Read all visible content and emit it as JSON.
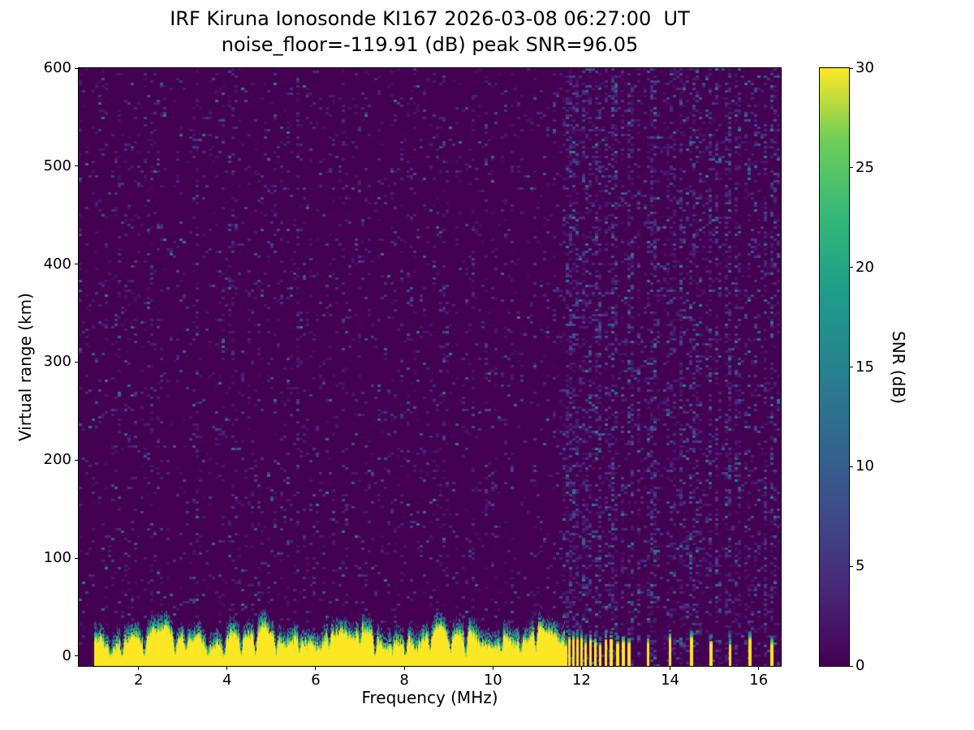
{
  "figure": {
    "title": "IRF Kiruna Ionosonde KI167 2026-03-08 06:27:00  UT",
    "subtitle": "noise_floor=-119.91 (dB) peak SNR=96.05"
  },
  "axes": {
    "xlabel": "Frequency (MHz)",
    "ylabel": "Virtual range (km)",
    "x_ticks": [
      2,
      4,
      6,
      8,
      10,
      12,
      14,
      16
    ],
    "y_ticks": [
      0,
      100,
      200,
      300,
      400,
      500,
      600
    ]
  },
  "colorbar": {
    "label": "SNR (dB)",
    "ticks": [
      0,
      5,
      10,
      15,
      20,
      25,
      30
    ],
    "min": 0,
    "max": 30
  },
  "chart_data": {
    "type": "heatmap",
    "title": "IRF Kiruna Ionosonde KI167 2026-03-08 06:27:00  UT",
    "subtitle": "noise_floor=-119.91 (dB) peak SNR=96.05",
    "station": "IRF Kiruna Ionosonde KI167",
    "timestamp_ut": "2026-03-08 06:27:00",
    "noise_floor_db": -119.91,
    "peak_snr_db": 96.05,
    "xlabel": "Frequency (MHz)",
    "ylabel": "Virtual range (km)",
    "colorbar_label": "SNR (dB)",
    "snr_range": [
      0,
      30
    ],
    "xlim": [
      0.65,
      16.5
    ],
    "ylim": [
      -10,
      600
    ],
    "colormap": {
      "name": "viridis",
      "stops": [
        [
          0.0,
          "#440154"
        ],
        [
          0.13,
          "#482878"
        ],
        [
          0.25,
          "#3e4a89"
        ],
        [
          0.38,
          "#31688e"
        ],
        [
          0.5,
          "#26828e"
        ],
        [
          0.63,
          "#1f9e89"
        ],
        [
          0.75,
          "#35b779"
        ],
        [
          0.88,
          "#6ece58"
        ],
        [
          1.0,
          "#fde725"
        ]
      ]
    },
    "echo_band": {
      "freq_start_mhz": 1.0,
      "freq_end_mhz": 11.6,
      "top_km_mean": 30,
      "top_km_variation": 13,
      "notch_freqs_mhz": [
        1.36,
        1.62,
        2.13,
        2.82,
        3.06,
        3.56,
        3.92,
        4.31,
        4.63,
        5.1,
        5.62,
        6.3,
        6.99,
        7.33,
        7.72,
        8.02,
        8.57,
        9.03,
        9.38,
        10.18,
        10.62,
        10.96
      ]
    },
    "interference_bars_mhz": [
      11.63,
      11.72,
      11.81,
      11.9,
      11.99,
      12.09,
      12.19,
      12.3,
      12.42,
      12.54,
      12.66,
      12.79,
      12.92,
      13.05,
      13.5,
      13.99,
      14.46,
      14.91,
      15.35,
      15.79,
      16.28
    ],
    "noise_stripe_freqs_mhz": [
      11.63,
      11.72,
      11.81,
      11.9,
      11.99,
      12.09,
      12.19,
      12.3,
      12.42,
      12.54,
      12.66,
      12.79,
      12.92,
      13.05,
      13.17,
      13.29,
      13.5,
      13.62,
      13.75,
      13.87,
      13.99,
      14.11,
      14.23,
      14.35,
      14.46,
      14.58,
      14.7,
      14.82,
      14.91,
      15.03,
      15.15,
      15.27,
      15.35,
      15.47,
      15.59,
      15.7,
      15.79,
      15.91,
      16.03,
      16.15,
      16.28,
      16.4
    ],
    "weak_stripe_freqs_mhz": [
      1.55,
      2.28,
      3.34,
      4.12,
      5.06,
      5.62,
      6.66,
      7.75,
      8.9,
      9.85,
      10.45
    ],
    "background": {
      "seed": 20260308,
      "speckle_density": 0.11,
      "speckle_snr_max": 14
    }
  }
}
